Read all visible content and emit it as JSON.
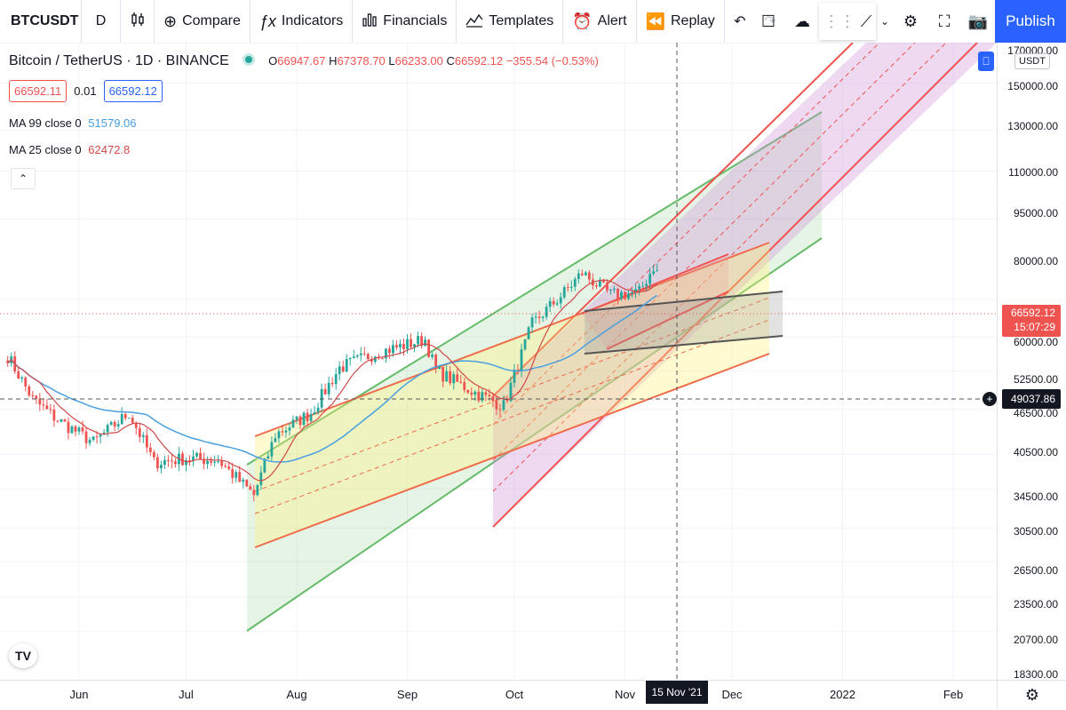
{
  "toolbar": {
    "symbol": "BTCUSDT",
    "interval": "D",
    "compare": "Compare",
    "indicators": "Indicators",
    "financials": "Financials",
    "templates": "Templates",
    "alert": "Alert",
    "replay": "Replay",
    "publish": "Publish"
  },
  "legend": {
    "title": "Bitcoin / TetherUS · 1D · BINANCE",
    "open_k": "O",
    "open": "66947.67",
    "high_k": "H",
    "high": "67378.70",
    "low_k": "L",
    "low": "66233.00",
    "close_k": "C",
    "close": "66592.12",
    "change": "−355.54 (−0.53%)",
    "bid": "66592.11",
    "spread": "0.01",
    "ask": "66592.12",
    "ma99_label": "MA 99 close 0",
    "ma99_value": "51579.06",
    "ma25_label": "MA 25 close 0",
    "ma25_value": "62472.8"
  },
  "price_axis": {
    "currency": "USDT",
    "labels": [
      {
        "v": "170000.00",
        "p": 170000
      },
      {
        "v": "150000.00",
        "p": 150000
      },
      {
        "v": "130000.00",
        "p": 130000
      },
      {
        "v": "110000.00",
        "p": 110000
      },
      {
        "v": "95000.00",
        "p": 95000
      },
      {
        "v": "80000.00",
        "p": 80000
      },
      {
        "v": "60000.00",
        "p": 60000
      },
      {
        "v": "52500.00",
        "p": 52500
      },
      {
        "v": "46500.00",
        "p": 46500
      },
      {
        "v": "40500.00",
        "p": 40500
      },
      {
        "v": "34500.00",
        "p": 34500
      },
      {
        "v": "30500.00",
        "p": 30500
      },
      {
        "v": "26500.00",
        "p": 26500
      },
      {
        "v": "23500.00",
        "p": 23500
      },
      {
        "v": "20700.00",
        "p": 20700
      },
      {
        "v": "18300.00",
        "p": 18300
      }
    ],
    "last_price": "66592.12",
    "countdown": "15:07:29",
    "crosshair_price": "49037.86"
  },
  "time_axis": {
    "labels": [
      "Jun",
      "Jul",
      "Aug",
      "Sep",
      "Oct",
      "Nov",
      "Dec",
      "2022",
      "Feb"
    ],
    "crosshair_date": "15 Nov '21"
  },
  "colors": {
    "up": "#26a69a",
    "down": "#ef5350",
    "ma99": "#4aa0e0",
    "ma25": "#d04a4a",
    "accent": "#2962ff"
  },
  "chart_data": {
    "type": "candlestick",
    "symbol": "BTCUSDT",
    "interval": "1D",
    "scale": "log",
    "ylim": [
      18300,
      170000
    ],
    "closes": [
      {
        "date": "2021-05-12",
        "close": 49000
      },
      {
        "date": "2021-05-19",
        "close": 42000
      },
      {
        "date": "2021-05-26",
        "close": 39000
      },
      {
        "date": "2021-06-05",
        "close": 36000
      },
      {
        "date": "2021-06-15",
        "close": 40000
      },
      {
        "date": "2021-06-22",
        "close": 33500
      },
      {
        "date": "2021-07-01",
        "close": 34000
      },
      {
        "date": "2021-07-10",
        "close": 33800
      },
      {
        "date": "2021-07-20",
        "close": 29800
      },
      {
        "date": "2021-07-26",
        "close": 37000
      },
      {
        "date": "2021-08-05",
        "close": 40000
      },
      {
        "date": "2021-08-13",
        "close": 47000
      },
      {
        "date": "2021-08-23",
        "close": 49500
      },
      {
        "date": "2021-09-06",
        "close": 52000
      },
      {
        "date": "2021-09-09",
        "close": 46500
      },
      {
        "date": "2021-09-20",
        "close": 43000
      },
      {
        "date": "2021-09-28",
        "close": 41000
      },
      {
        "date": "2021-10-06",
        "close": 55000
      },
      {
        "date": "2021-10-15",
        "close": 61500
      },
      {
        "date": "2021-10-20",
        "close": 66000
      },
      {
        "date": "2021-10-28",
        "close": 61000
      },
      {
        "date": "2021-11-05",
        "close": 61500
      },
      {
        "date": "2021-11-09",
        "close": 67500
      },
      {
        "date": "2021-11-10",
        "close": 66592.12
      }
    ],
    "series": [
      {
        "name": "MA 99 close 0",
        "last": 51579.06
      },
      {
        "name": "MA 25 close 0",
        "last": 62472.8
      }
    ]
  }
}
